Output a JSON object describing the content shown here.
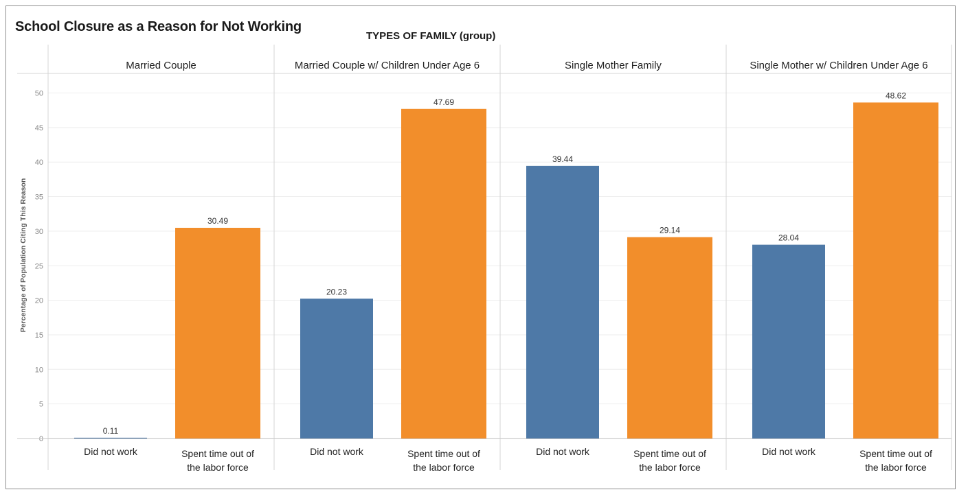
{
  "chart_data": {
    "type": "bar",
    "title": "School Closure as a Reason for Not Working",
    "group_title": "TYPES OF FAMILY (group)",
    "ylabel": "Percentage of Population Citing This Reason",
    "ylim": [
      0,
      52
    ],
    "yticks": [
      0,
      5,
      10,
      15,
      20,
      25,
      30,
      35,
      40,
      45,
      50
    ],
    "grid": true,
    "colors": {
      "Did not work": "#4e79a7",
      "Spent time out of the labor force": "#f28e2b"
    },
    "panels": [
      {
        "name": "Married Couple",
        "bars": [
          {
            "category": "Did not work",
            "value": 0.11,
            "label": "0.11"
          },
          {
            "category": "Spent time out of the labor force",
            "value": 30.49,
            "label": "30.49"
          }
        ]
      },
      {
        "name": "Married Couple w/ Children Under Age 6",
        "bars": [
          {
            "category": "Did not work",
            "value": 20.23,
            "label": "20.23"
          },
          {
            "category": "Spent time out of the labor force",
            "value": 47.69,
            "label": "47.69"
          }
        ]
      },
      {
        "name": "Single Mother Family",
        "bars": [
          {
            "category": "Did not work",
            "value": 39.44,
            "label": "39.44"
          },
          {
            "category": "Spent time out of the labor force",
            "value": 29.14,
            "label": "29.14"
          }
        ]
      },
      {
        "name": "Single Mother w/ Children Under Age 6",
        "bars": [
          {
            "category": "Did not work",
            "value": 28.04,
            "label": "28.04"
          },
          {
            "category": "Spent time out of the labor force",
            "value": 48.62,
            "label": "48.62"
          }
        ]
      }
    ]
  }
}
